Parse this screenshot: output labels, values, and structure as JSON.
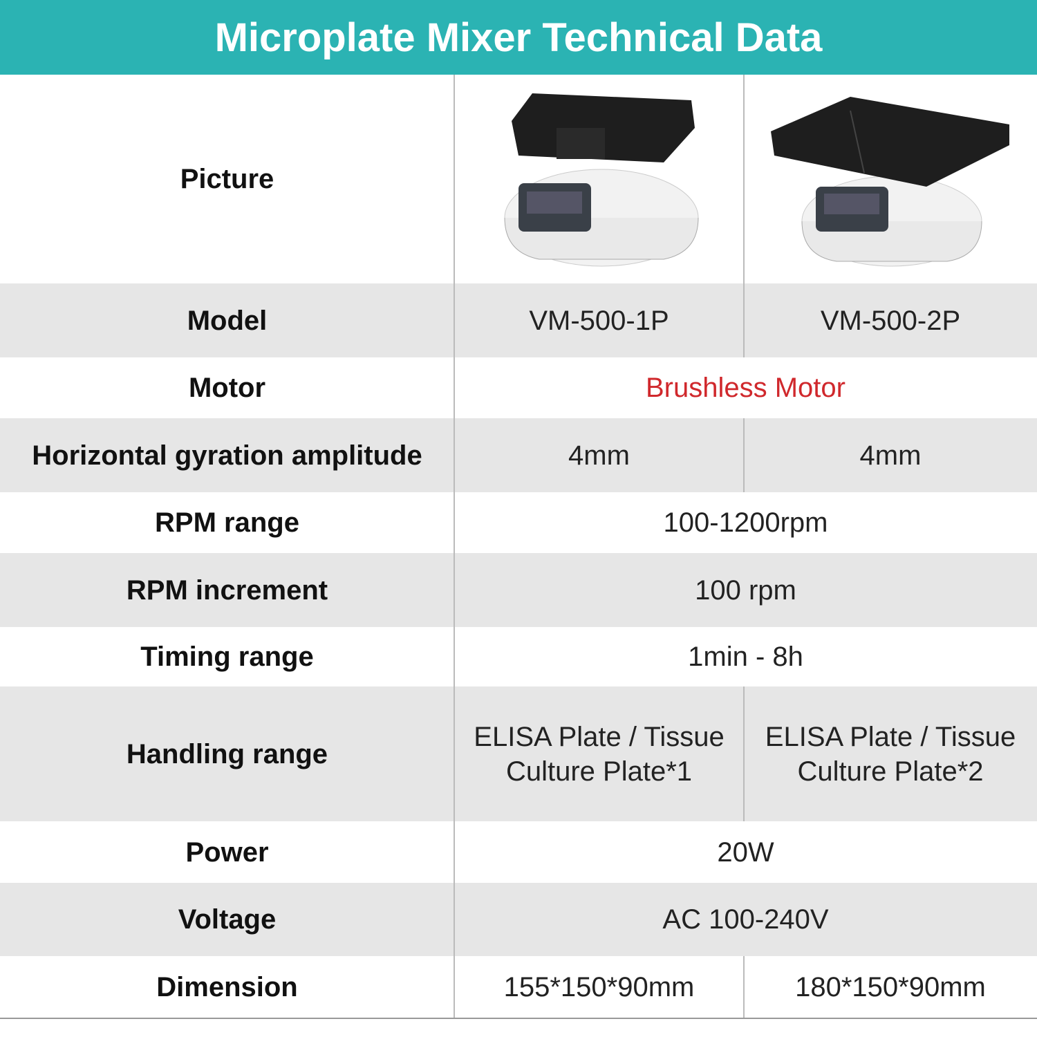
{
  "header": {
    "title": "Microplate Mixer Technical Data"
  },
  "picture_row": {
    "label": "Picture"
  },
  "table": {
    "rows": [
      [
        "Model",
        "VM-500-1P",
        "VM-500-2P"
      ],
      [
        "Motor",
        "Brushless Motor"
      ],
      [
        "Horizontal gyration amplitude",
        "4mm",
        "4mm"
      ],
      [
        "RPM range",
        "100-1200rpm"
      ],
      [
        "RPM increment",
        "100 rpm"
      ],
      [
        "Timing range",
        "1min - 8h"
      ],
      [
        "Handling range",
        "ELISA Plate / Tissue Culture Plate*1",
        "ELISA Plate / Tissue Culture Plate*2"
      ],
      [
        "Power",
        "20W"
      ],
      [
        "Voltage",
        "AC 100-240V"
      ],
      [
        "Dimension",
        "155*150*90mm",
        "180*150*90mm"
      ]
    ]
  }
}
